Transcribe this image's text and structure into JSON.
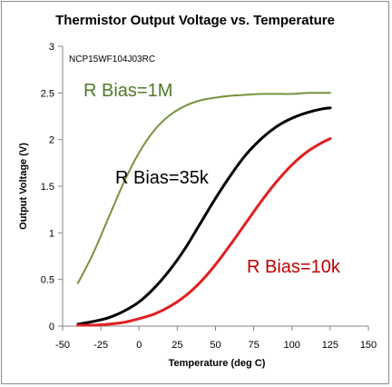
{
  "chart_data": {
    "type": "line",
    "title": "Thermistor Output Voltage vs. Temperature",
    "xlabel": "Temperature (deg C)",
    "ylabel": "Output Voltage (V)",
    "annotation": "NCP15WF104J03RC",
    "xlim": [
      -50,
      150
    ],
    "ylim": [
      0,
      3
    ],
    "xticks": [
      "-50",
      "-25",
      "0",
      "25",
      "50",
      "75",
      "100",
      "125",
      "150"
    ],
    "yticks": [
      "0",
      "0.5",
      "1",
      "1.5",
      "2",
      "2.5",
      "3"
    ],
    "grid": false,
    "x": [
      -40,
      -30,
      -20,
      -10,
      0,
      10,
      20,
      30,
      40,
      50,
      60,
      70,
      80,
      90,
      100,
      110,
      120,
      125
    ],
    "series": [
      {
        "name": "R Bias=1M",
        "color": "#77933c",
        "values": [
          0.46,
          0.78,
          1.16,
          1.54,
          1.86,
          2.1,
          2.26,
          2.36,
          2.42,
          2.45,
          2.47,
          2.48,
          2.49,
          2.49,
          2.49,
          2.5,
          2.5,
          2.5
        ]
      },
      {
        "name": "R Bias=35k",
        "color": "#000000",
        "values": [
          0.02,
          0.05,
          0.09,
          0.16,
          0.26,
          0.41,
          0.6,
          0.83,
          1.1,
          1.37,
          1.62,
          1.84,
          2.01,
          2.14,
          2.23,
          2.29,
          2.33,
          2.34
        ]
      },
      {
        "name": "R Bias=10k",
        "color": "#e02020",
        "values": [
          0.01,
          0.01,
          0.02,
          0.04,
          0.08,
          0.13,
          0.21,
          0.32,
          0.47,
          0.66,
          0.88,
          1.11,
          1.34,
          1.55,
          1.73,
          1.87,
          1.97,
          2.01
        ]
      }
    ]
  }
}
